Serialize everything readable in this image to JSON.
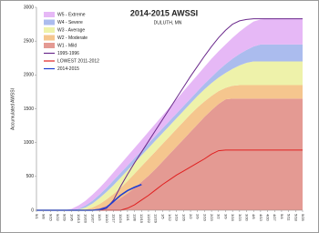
{
  "chart_data": {
    "type": "area",
    "title": "2014-2015  AWSSI",
    "subtitle": "DULUTH, MN",
    "y_label": "Accumulated AWSSI",
    "categories": [
      "9/1",
      "9/8",
      "9/15",
      "9/22",
      "9/29",
      "10/6",
      "10/13",
      "10/20",
      "10/27",
      "11/3",
      "11/10",
      "11/17",
      "11/24",
      "12/1",
      "12/8",
      "12/15",
      "12/22",
      "12/29",
      "1/5",
      "1/12",
      "1/19",
      "1/26",
      "2/2",
      "2/9",
      "2/16",
      "2/23",
      "3/2",
      "3/9",
      "3/16",
      "3/23",
      "3/30",
      "4/6",
      "4/13",
      "4/20",
      "4/27",
      "5/4",
      "5/11",
      "5/18",
      "5/25"
    ],
    "ylim": [
      0,
      3000
    ],
    "yticks": [
      0,
      500,
      1000,
      1500,
      2000,
      2500,
      3000
    ],
    "grid": false,
    "legend": "top-left",
    "series": [
      {
        "name": "W5 - Extreme",
        "style": "area",
        "color": "#e6b8f6",
        "values": [
          0,
          0,
          0,
          0,
          0,
          20,
          50,
          70,
          90,
          100,
          110,
          120,
          130,
          140,
          150,
          160,
          170,
          180,
          190,
          200,
          210,
          220,
          230,
          240,
          250,
          270,
          280,
          290,
          310,
          330,
          350,
          370,
          370,
          380,
          380,
          380,
          380,
          380,
          380
        ]
      },
      {
        "name": "W4 - Severe",
        "style": "area",
        "color": "#abbcee",
        "values": [
          0,
          0,
          0,
          0,
          0,
          0,
          10,
          30,
          40,
          50,
          60,
          70,
          70,
          70,
          70,
          70,
          70,
          70,
          70,
          70,
          70,
          70,
          70,
          70,
          80,
          90,
          110,
          130,
          150,
          170,
          190,
          220,
          250,
          250,
          250,
          250,
          250,
          250,
          250
        ]
      },
      {
        "name": "W3 - Average",
        "style": "area",
        "color": "#eef2aa",
        "values": [
          0,
          0,
          0,
          0,
          0,
          0,
          10,
          30,
          60,
          90,
          110,
          130,
          150,
          160,
          160,
          160,
          160,
          160,
          160,
          160,
          160,
          160,
          160,
          170,
          180,
          190,
          200,
          220,
          250,
          290,
          330,
          350,
          350,
          350,
          350,
          350,
          350,
          350,
          350
        ]
      },
      {
        "name": "W2 - Moderate",
        "style": "area",
        "color": "#f5c68e",
        "values": [
          0,
          0,
          0,
          0,
          0,
          0,
          0,
          10,
          30,
          60,
          90,
          120,
          150,
          180,
          210,
          230,
          250,
          260,
          260,
          260,
          260,
          260,
          260,
          250,
          230,
          210,
          190,
          170,
          190,
          200,
          200,
          200,
          200,
          200,
          200,
          200,
          200,
          200,
          200
        ]
      },
      {
        "name": "W1 - Mild",
        "style": "area",
        "color": "#e49a93",
        "values": [
          0,
          0,
          0,
          0,
          0,
          0,
          0,
          0,
          10,
          30,
          70,
          120,
          180,
          250,
          330,
          420,
          510,
          610,
          720,
          830,
          940,
          1050,
          1160,
          1270,
          1380,
          1480,
          1570,
          1640,
          1650,
          1650,
          1650,
          1650,
          1650,
          1650,
          1650,
          1650,
          1650,
          1650,
          1650
        ]
      },
      {
        "name": "1995-1996",
        "style": "line",
        "color": "#6b2a8c",
        "values": [
          0,
          0,
          0,
          0,
          0,
          0,
          0,
          0,
          0,
          0,
          30,
          150,
          350,
          530,
          700,
          860,
          1020,
          1180,
          1340,
          1500,
          1660,
          1820,
          1980,
          2130,
          2280,
          2420,
          2550,
          2660,
          2750,
          2800,
          2820,
          2830,
          2830,
          2830,
          2830,
          2830,
          2830,
          2830,
          2830
        ]
      },
      {
        "name": "LOWEST 2011-2012",
        "style": "line",
        "color": "#e02020",
        "values": [
          0,
          0,
          0,
          0,
          0,
          0,
          0,
          0,
          0,
          0,
          0,
          0,
          0,
          30,
          80,
          150,
          220,
          300,
          380,
          450,
          520,
          580,
          640,
          700,
          760,
          830,
          880,
          890,
          890,
          890,
          890,
          890,
          890,
          890,
          890,
          890,
          890,
          890,
          890
        ]
      },
      {
        "name": "2014-2015",
        "style": "line",
        "color": "#1f3fd0",
        "values": [
          0,
          0,
          0,
          0,
          0,
          0,
          0,
          0,
          0,
          10,
          40,
          130,
          220,
          290,
          340,
          380,
          null,
          null,
          null,
          null,
          null,
          null,
          null,
          null,
          null,
          null,
          null,
          null,
          null,
          null,
          null,
          null,
          null,
          null,
          null,
          null,
          null,
          null,
          null
        ]
      }
    ]
  }
}
